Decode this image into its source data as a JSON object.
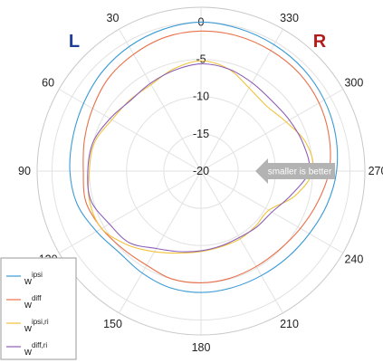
{
  "chart_data": {
    "type": "line",
    "projection": "polar",
    "theta_direction": "counterclockwise",
    "theta_zero": "top",
    "side_labels": {
      "left": "L",
      "right": "R"
    },
    "colors": {
      "left_label": "#1f3d99",
      "right_label": "#b31b1b"
    },
    "theta_ticks": [
      "0",
      "30",
      "60",
      "90",
      "120",
      "150",
      "180",
      "210",
      "240",
      "270",
      "300",
      "330"
    ],
    "r_ticks": [
      "0",
      "-5",
      "-10",
      "-15",
      "-20"
    ],
    "r_range": [
      -20,
      2
    ],
    "grid": true,
    "annotation": "smaller is better",
    "legend_position": "bottom-left",
    "theta": [
      0,
      15,
      30,
      45,
      60,
      75,
      90,
      105,
      120,
      135,
      150,
      165,
      180,
      195,
      210,
      225,
      240,
      255,
      270,
      285,
      300,
      315,
      330,
      345
    ],
    "series": [
      {
        "base": "w",
        "sup": "ipsi",
        "color": "#3a9bd5",
        "values": [
          0.0,
          -0.3,
          -0.7,
          -1.2,
          -1.8,
          -2.2,
          -2.4,
          -2.8,
          -3.8,
          -4.5,
          -4.2,
          -3.8,
          -3.7,
          -3.8,
          -3.8,
          -3.6,
          -3.2,
          -2.5,
          -1.8,
          -1.3,
          -0.9,
          -0.6,
          -0.4,
          -0.2
        ]
      },
      {
        "base": "w",
        "sup": "diff",
        "color": "#e8714a",
        "values": [
          -1.2,
          -1.4,
          -1.9,
          -2.4,
          -3.2,
          -3.8,
          -4.2,
          -4.0,
          -4.6,
          -5.2,
          -5.4,
          -5.0,
          -5.0,
          -5.1,
          -5.2,
          -5.1,
          -4.6,
          -3.8,
          -2.8,
          -2.2,
          -1.7,
          -1.4,
          -1.3,
          -1.2
        ]
      },
      {
        "base": "w",
        "sup": "ipsi,ri",
        "color": "#f2c23a",
        "values": [
          -5.2,
          -5.8,
          -6.6,
          -6.5,
          -6.2,
          -5.2,
          -5.0,
          -4.5,
          -4.6,
          -6.0,
          -7.5,
          -8.6,
          -9.2,
          -9.5,
          -9.5,
          -9.6,
          -9.5,
          -7.0,
          -5.0,
          -5.4,
          -6.8,
          -7.6,
          -7.1,
          -5.8
        ]
      },
      {
        "base": "w",
        "sup": "diff,ri",
        "color": "#8b5fb8",
        "values": [
          -5.6,
          -6.0,
          -6.4,
          -6.6,
          -5.9,
          -5.0,
          -4.8,
          -4.7,
          -5.8,
          -6.4,
          -8.0,
          -8.8,
          -9.3,
          -9.6,
          -9.7,
          -9.4,
          -9.0,
          -7.5,
          -5.5,
          -5.8,
          -6.3,
          -6.6,
          -6.3,
          -5.8
        ]
      }
    ]
  }
}
